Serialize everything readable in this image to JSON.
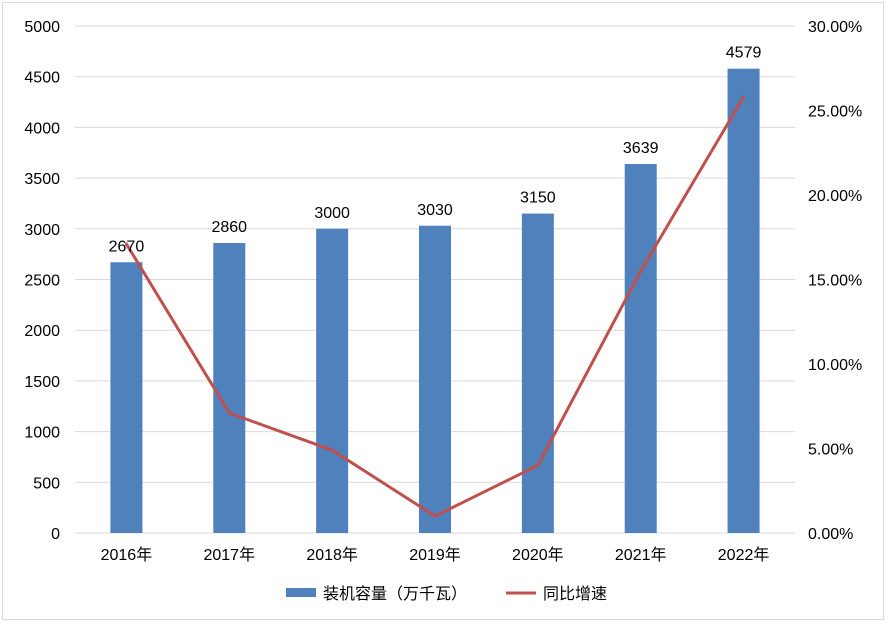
{
  "chart_data": {
    "type": "bar",
    "categories": [
      "2016年",
      "2017年",
      "2018年",
      "2019年",
      "2020年",
      "2021年",
      "2022年"
    ],
    "series": [
      {
        "name": "装机容量（万千瓦）",
        "type": "bar",
        "axis": "left",
        "color": "#4F81BD",
        "values": [
          2670,
          2860,
          3000,
          3030,
          3150,
          3639,
          4579
        ],
        "data_labels": [
          "2670",
          "2860",
          "3000",
          "3030",
          "3150",
          "3639",
          "4579"
        ]
      },
      {
        "name": "同比增速",
        "type": "line",
        "axis": "right",
        "color": "#C0504D",
        "values": [
          17.1,
          7.1,
          4.9,
          1.0,
          4.0,
          15.5,
          25.8
        ]
      }
    ],
    "left_axis": {
      "ylim": [
        0,
        5000
      ],
      "ticks": [
        0,
        500,
        1000,
        1500,
        2000,
        2500,
        3000,
        3500,
        4000,
        4500,
        5000
      ],
      "tick_labels": [
        "0",
        "500",
        "1000",
        "1500",
        "2000",
        "2500",
        "3000",
        "3500",
        "4000",
        "4500",
        "5000"
      ]
    },
    "right_axis": {
      "ylim": [
        0,
        30
      ],
      "ticks": [
        0,
        5,
        10,
        15,
        20,
        25,
        30
      ],
      "tick_labels": [
        "0.00%",
        "5.00%",
        "10.00%",
        "15.00%",
        "20.00%",
        "25.00%",
        "30.00%"
      ]
    },
    "grid": true,
    "legend_position": "bottom",
    "legend": [
      {
        "label": "装机容量（万千瓦）",
        "color": "#4F81BD",
        "marker": "bar"
      },
      {
        "label": "同比增速",
        "color": "#C0504D",
        "marker": "line"
      }
    ]
  }
}
